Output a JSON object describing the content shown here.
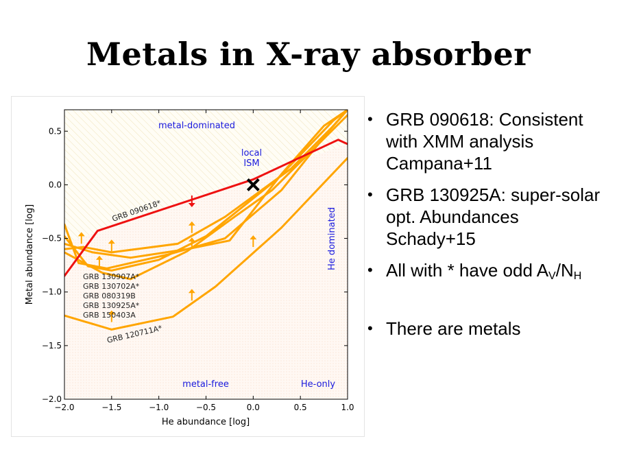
{
  "slide": {
    "title": "Metals in X-ray absorber",
    "bullets": [
      {
        "text": "GRB 090618: Consistent with XMM analysis Campana+11"
      },
      {
        "text": "GRB 130925A: super-solar opt. Abundances Schady+15"
      },
      {
        "text": "All with * have odd ",
        "a": "A",
        "a_sub": "V",
        "slash": "/",
        "n": "N",
        "n_sub": "H"
      },
      {
        "text": "There are metals"
      }
    ]
  },
  "chart_data": {
    "type": "line",
    "xlabel": "He abundance [log]",
    "ylabel": "Metal abundance [log]",
    "xlim": [
      -2.0,
      1.0
    ],
    "ylim": [
      -2.0,
      0.7
    ],
    "xticks": [
      -2.0,
      -1.5,
      -1.0,
      -0.5,
      0.0,
      0.5,
      1.0
    ],
    "xtick_labels": [
      "−2.0",
      "−1.5",
      "−1.0",
      "−0.5",
      "0.0",
      "0.5",
      "1.0"
    ],
    "yticks": [
      0.5,
      0.0,
      -0.5,
      -1.0,
      -1.5,
      -2.0
    ],
    "ytick_labels": [
      "0.5",
      "0.0",
      "−0.5",
      "−1.0",
      "−1.5",
      "−2.0"
    ],
    "grid": false,
    "region_labels": {
      "metal_dominated": "metal-dominated",
      "he_dominated": "He dominated",
      "metal_free": "metal-free",
      "he_only": "He-only",
      "local_ism": [
        "local",
        "ISM"
      ]
    },
    "local_ism_point": {
      "x": 0.0,
      "y": 0.0
    },
    "series_labels": {
      "red": "GRB 090618*",
      "lowest": "GRB 120711A*",
      "group": [
        "GRB 130907A*",
        "GRB 130702A*",
        "GRB 080319B",
        "GRB 130925A*",
        "GRB 150403A"
      ]
    },
    "colors": {
      "red": "#ee1111",
      "orange": "#ffa500",
      "region_text": "#1a1add",
      "axis": "#000000"
    },
    "series": [
      {
        "color": "red",
        "points": [
          [
            -2.0,
            -0.85
          ],
          [
            -1.65,
            -0.43
          ],
          [
            0.0,
            0.05
          ],
          [
            0.9,
            0.42
          ],
          [
            1.0,
            0.38
          ]
        ]
      },
      {
        "color": "orange",
        "points": [
          [
            -2.0,
            -0.37
          ],
          [
            -1.85,
            -0.73
          ],
          [
            -1.55,
            -0.78
          ],
          [
            -0.9,
            -0.65
          ],
          [
            -0.3,
            -0.5
          ],
          [
            0.3,
            -0.05
          ],
          [
            0.8,
            0.5
          ],
          [
            1.0,
            0.7
          ]
        ]
      },
      {
        "color": "orange",
        "points": [
          [
            -2.0,
            -0.48
          ],
          [
            -1.75,
            -0.76
          ],
          [
            -1.5,
            -0.8
          ],
          [
            -1.0,
            -0.7
          ],
          [
            -0.5,
            -0.48
          ],
          [
            0.25,
            0.05
          ],
          [
            0.85,
            0.6
          ],
          [
            1.0,
            0.7
          ]
        ]
      },
      {
        "color": "orange",
        "points": [
          [
            -2.0,
            -0.6
          ],
          [
            -1.8,
            -0.58
          ],
          [
            -1.5,
            -0.63
          ],
          [
            -0.8,
            -0.55
          ],
          [
            -0.3,
            -0.3
          ],
          [
            0.4,
            0.15
          ],
          [
            0.85,
            0.55
          ],
          [
            1.0,
            0.7
          ]
        ]
      },
      {
        "color": "orange",
        "points": [
          [
            -2.0,
            -0.55
          ],
          [
            -1.7,
            -0.63
          ],
          [
            -1.3,
            -0.68
          ],
          [
            -0.7,
            -0.6
          ],
          [
            -0.25,
            -0.52
          ],
          [
            0.3,
            0.1
          ],
          [
            0.75,
            0.55
          ],
          [
            1.0,
            0.7
          ]
        ]
      },
      {
        "color": "orange",
        "points": [
          [
            -2.0,
            -0.63
          ],
          [
            -1.6,
            -0.82
          ],
          [
            -1.3,
            -0.88
          ],
          [
            -0.7,
            -0.62
          ],
          [
            -0.2,
            -0.3
          ],
          [
            0.2,
            -0.05
          ],
          [
            0.6,
            0.3
          ],
          [
            1.0,
            0.65
          ]
        ]
      },
      {
        "color": "orange",
        "points": [
          [
            -2.0,
            -1.22
          ],
          [
            -1.5,
            -1.35
          ],
          [
            -0.85,
            -1.23
          ],
          [
            -0.4,
            -0.95
          ],
          [
            0.3,
            -0.4
          ],
          [
            1.0,
            0.25
          ]
        ]
      }
    ],
    "arrows": [
      {
        "color": "red",
        "dir": "down",
        "x": -0.65,
        "y": -0.1
      },
      {
        "color": "orange",
        "dir": "up",
        "x": -1.82,
        "y": -0.55
      },
      {
        "color": "orange",
        "dir": "up",
        "x": -1.5,
        "y": -0.62
      },
      {
        "color": "orange",
        "dir": "up",
        "x": -1.63,
        "y": -0.77
      },
      {
        "color": "orange",
        "dir": "up",
        "x": -0.65,
        "y": -0.45
      },
      {
        "color": "orange",
        "dir": "up",
        "x": -0.65,
        "y": -0.6
      },
      {
        "color": "orange",
        "dir": "up",
        "x": 0.0,
        "y": -0.58
      },
      {
        "color": "orange",
        "dir": "up",
        "x": -0.65,
        "y": -1.08
      },
      {
        "color": "orange",
        "dir": "up",
        "x": -1.5,
        "y": -1.28
      }
    ]
  }
}
